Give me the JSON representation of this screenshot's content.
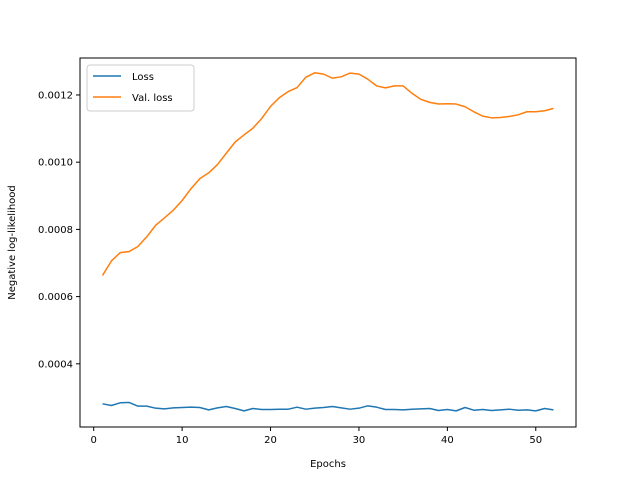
{
  "chart_data": {
    "type": "line",
    "title": "",
    "xlabel": "Epochs",
    "ylabel": "Negative log-likelihood",
    "xlim": [
      -1.55,
      54.55
    ],
    "ylim": [
      0.000212,
      0.00131
    ],
    "xticks": [
      0,
      10,
      20,
      30,
      40,
      50
    ],
    "yticks": [
      0.0004,
      0.0006,
      0.0008,
      0.001,
      0.0012
    ],
    "xtick_labels": [
      "0",
      "10",
      "20",
      "30",
      "40",
      "50"
    ],
    "ytick_labels": [
      "0.0004",
      "0.0006",
      "0.0008",
      "0.0010",
      "0.0012"
    ],
    "grid": false,
    "legend_position": "top-left",
    "x": [
      1,
      2,
      3,
      4,
      5,
      6,
      7,
      8,
      9,
      10,
      11,
      12,
      13,
      14,
      15,
      16,
      17,
      18,
      19,
      20,
      21,
      22,
      23,
      24,
      25,
      26,
      27,
      28,
      29,
      30,
      31,
      32,
      33,
      34,
      35,
      36,
      37,
      38,
      39,
      40,
      41,
      42,
      43,
      44,
      45,
      46,
      47,
      48,
      49,
      50,
      51,
      52
    ],
    "series": [
      {
        "name": "Loss",
        "color": "#1f77b4",
        "values": [
          0.000281,
          0.000276,
          0.000284,
          0.000285,
          0.000274,
          0.000274,
          0.000268,
          0.000266,
          0.000269,
          0.00027,
          0.000271,
          0.00027,
          0.000263,
          0.000269,
          0.000273,
          0.000267,
          0.00026,
          0.000267,
          0.000264,
          0.000264,
          0.000265,
          0.000265,
          0.000271,
          0.000265,
          0.000268,
          0.00027,
          0.000273,
          0.000269,
          0.000265,
          0.000268,
          0.000275,
          0.000271,
          0.000264,
          0.000264,
          0.000263,
          0.000265,
          0.000266,
          0.000267,
          0.000261,
          0.000264,
          0.00026,
          0.00027,
          0.000262,
          0.000264,
          0.000261,
          0.000263,
          0.000265,
          0.000262,
          0.000263,
          0.00026,
          0.000267,
          0.000263
        ]
      },
      {
        "name": "Val. loss",
        "color": "#ff7f0e",
        "values": [
          0.000663,
          0.000706,
          0.000731,
          0.000734,
          0.000749,
          0.000778,
          0.000812,
          0.000834,
          0.000857,
          0.000886,
          0.000921,
          0.000951,
          0.000968,
          0.000993,
          0.001027,
          0.00106,
          0.001081,
          0.001101,
          0.00113,
          0.001166,
          0.001192,
          0.00121,
          0.001222,
          0.001253,
          0.001266,
          0.001262,
          0.00125,
          0.001254,
          0.001265,
          0.001262,
          0.001247,
          0.001227,
          0.001221,
          0.001227,
          0.001227,
          0.001205,
          0.001187,
          0.001178,
          0.001173,
          0.001174,
          0.001173,
          0.001165,
          0.00115,
          0.001137,
          0.001132,
          0.001133,
          0.001136,
          0.001141,
          0.00115,
          0.00115,
          0.001153,
          0.00116
        ]
      }
    ]
  }
}
